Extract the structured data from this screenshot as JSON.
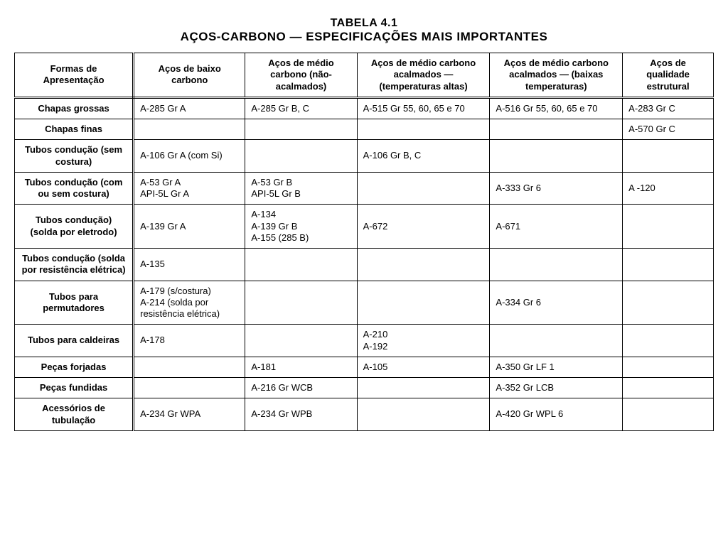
{
  "title": {
    "line1": "TABELA 4.1",
    "line2": "AÇOS-CARBONO — ESPECIFICAÇÕES MAIS IMPORTANTES"
  },
  "table": {
    "type": "table",
    "border_color": "#000000",
    "background_color": "#ffffff",
    "text_color": "#000000",
    "header_fontsize": 13,
    "cell_fontsize": 13,
    "column_widths_pct": [
      17,
      16,
      16,
      19,
      19,
      13
    ],
    "columns": [
      "Formas de Apresentação",
      "Aços de baixo carbono",
      "Aços de médio carbono (não-acalmados)",
      "Aços de médio carbono acalmados — (temperaturas altas)",
      "Aços de médio carbono acalmados — (baixas temperaturas)",
      "Aços de qualidade estrutural"
    ],
    "rows": [
      {
        "label": "Chapas grossas",
        "cells": [
          "A-285 Gr A",
          "A-285 Gr B, C",
          "A-515 Gr 55, 60, 65 e 70",
          "A-516 Gr 55, 60, 65 e 70",
          "A-283 Gr C"
        ]
      },
      {
        "label": "Chapas finas",
        "cells": [
          "",
          "",
          "",
          "",
          "A-570 Gr C"
        ]
      },
      {
        "label": "Tubos condução (sem costura)",
        "cells": [
          "A-106 Gr A (com Si)",
          "",
          "A-106 Gr B, C",
          "",
          ""
        ]
      },
      {
        "label": "Tubos condução (com ou sem costura)",
        "cells": [
          "A-53 Gr A\nAPI-5L Gr A",
          "A-53 Gr B\nAPI-5L Gr B",
          "",
          "A-333 Gr 6",
          "A -120"
        ]
      },
      {
        "label": "Tubos condução) (solda por eletrodo)",
        "cells": [
          "A-139 Gr A",
          "A-134\nA-139 Gr B\nA-155 (285 B)",
          "A-672",
          "A-671",
          ""
        ]
      },
      {
        "label": "Tubos condução (solda por resistência elétrica)",
        "cells": [
          "A-135",
          "",
          "",
          "",
          ""
        ]
      },
      {
        "label": "Tubos para permutadores",
        "cells": [
          "A-179 (s/costura)\nA-214 (solda por resistência elétrica)",
          "",
          "",
          "A-334 Gr 6",
          ""
        ]
      },
      {
        "label": "Tubos para caldeiras",
        "cells": [
          "A-178",
          "",
          "A-210\nA-192",
          "",
          ""
        ]
      },
      {
        "label": "Peças forjadas",
        "cells": [
          "",
          "A-181",
          "A-105",
          "A-350 Gr LF 1",
          ""
        ]
      },
      {
        "label": "Peças fundidas",
        "cells": [
          "",
          "A-216 Gr WCB",
          "",
          "A-352 Gr LCB",
          ""
        ]
      },
      {
        "label": "Acessórios de tubulação",
        "cells": [
          "A-234 Gr WPA",
          "A-234 Gr WPB",
          "",
          "A-420 Gr WPL 6",
          ""
        ]
      }
    ]
  }
}
